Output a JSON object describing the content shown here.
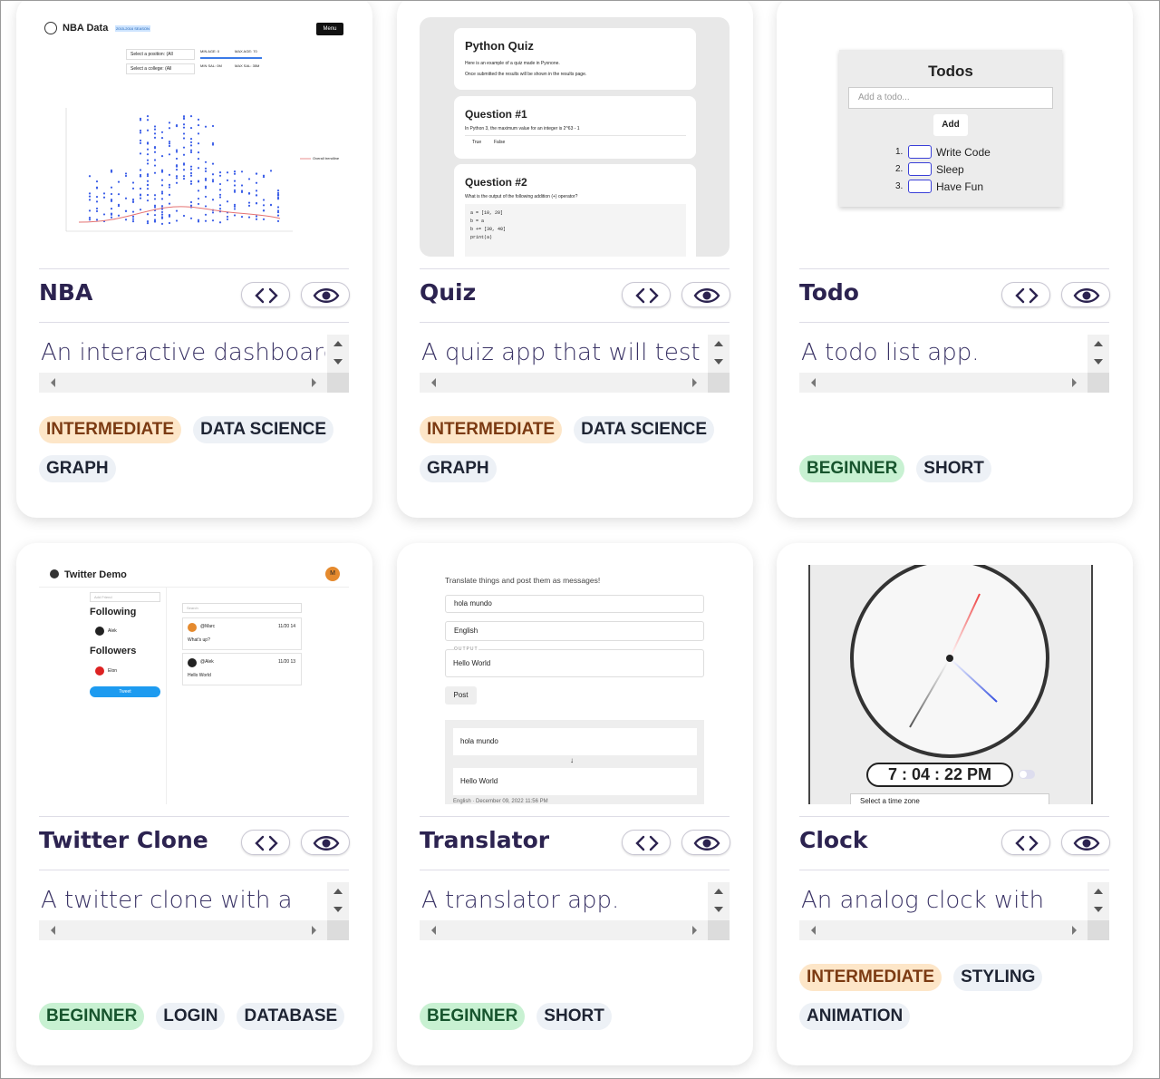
{
  "cards": [
    {
      "title": "NBA",
      "description": "An interactive dashboard",
      "tags": [
        {
          "label": "INTERMEDIATE",
          "level": "intermediate"
        },
        {
          "label": "DATA SCIENCE",
          "level": "topic"
        },
        {
          "label": "GRAPH",
          "level": "topic"
        }
      ],
      "preview": {
        "heading": "NBA Data",
        "badge": "2015-2016 SEASON",
        "menu": "Menu",
        "select_position": "Select a position: (All",
        "select_college": "Select a college: (All",
        "min_age": "MIN AGE: 0",
        "max_age": "MAX AGE: 70",
        "min_sal": "MIN SAL: 0M",
        "max_sal": "MAX SAL: 35M",
        "trendline": "Overall trendline"
      }
    },
    {
      "title": "Quiz",
      "description": "A quiz app that will test",
      "tags": [
        {
          "label": "INTERMEDIATE",
          "level": "intermediate"
        },
        {
          "label": "DATA SCIENCE",
          "level": "topic"
        },
        {
          "label": "GRAPH",
          "level": "topic"
        }
      ],
      "preview": {
        "heading": "Python Quiz",
        "intro1": "Here is an example of a quiz made in Pyxnone.",
        "intro2": "Once submitted the results will be shown in the results page.",
        "q1": "Question #1",
        "q1_text": "In Python 3, the maximum value for an integer is 2^63 - 1",
        "true": "True",
        "false": "False",
        "q2": "Question #2",
        "q2_text": "What is the output of the following addition (+) operator?",
        "code": [
          "a = [10, 20]",
          "b = a",
          "b += [30, 40]",
          "print(a)"
        ]
      }
    },
    {
      "title": "Todo",
      "description": "A todo list app.",
      "tags": [
        {
          "label": "BEGINNER",
          "level": "beginner"
        },
        {
          "label": "SHORT",
          "level": "topic"
        }
      ],
      "preview": {
        "heading": "Todos",
        "placeholder": "Add a todo...",
        "add": "Add",
        "items": [
          "Write Code",
          "Sleep",
          "Have Fun"
        ],
        "numbers": [
          "1.",
          "2.",
          "3."
        ]
      }
    },
    {
      "title": "Twitter Clone",
      "description": "A twitter clone with a",
      "tags": [
        {
          "label": "BEGINNER",
          "level": "beginner"
        },
        {
          "label": "LOGIN",
          "level": "topic"
        },
        {
          "label": "DATABASE",
          "level": "topic"
        }
      ],
      "preview": {
        "heading": "Twitter Demo",
        "avatar": "M",
        "add_friend": "Add Friend",
        "following": "Following",
        "friend1": "Alek",
        "followers": "Followers",
        "friend2": "Elon",
        "tweet": "Tweet",
        "search": "Search",
        "user1": "@Marc",
        "time1": "11/20 14",
        "msg1": "What's up?",
        "user2": "@Alek",
        "time2": "11/20 13",
        "msg2": "Hello World"
      }
    },
    {
      "title": "Translator",
      "description": "A translator app.",
      "tags": [
        {
          "label": "BEGINNER",
          "level": "beginner"
        },
        {
          "label": "SHORT",
          "level": "topic"
        }
      ],
      "preview": {
        "intro": "Translate things and post them as messages!",
        "input": "hola mundo",
        "language": "English",
        "output_label": "OUTPUT",
        "output": "Hello World",
        "post": "Post",
        "msg_in": "hola mundo",
        "arrow": "↓",
        "msg_out": "Hello World",
        "footer": "English · December 09, 2022 11:56 PM"
      }
    },
    {
      "title": "Clock",
      "description": "An analog clock with",
      "tags": [
        {
          "label": "INTERMEDIATE",
          "level": "intermediate"
        },
        {
          "label": "STYLING",
          "level": "topic"
        },
        {
          "label": "ANIMATION",
          "level": "topic"
        }
      ],
      "preview": {
        "time": "7 : 04 : 22 PM",
        "timezone": "Select a time zone"
      }
    }
  ]
}
